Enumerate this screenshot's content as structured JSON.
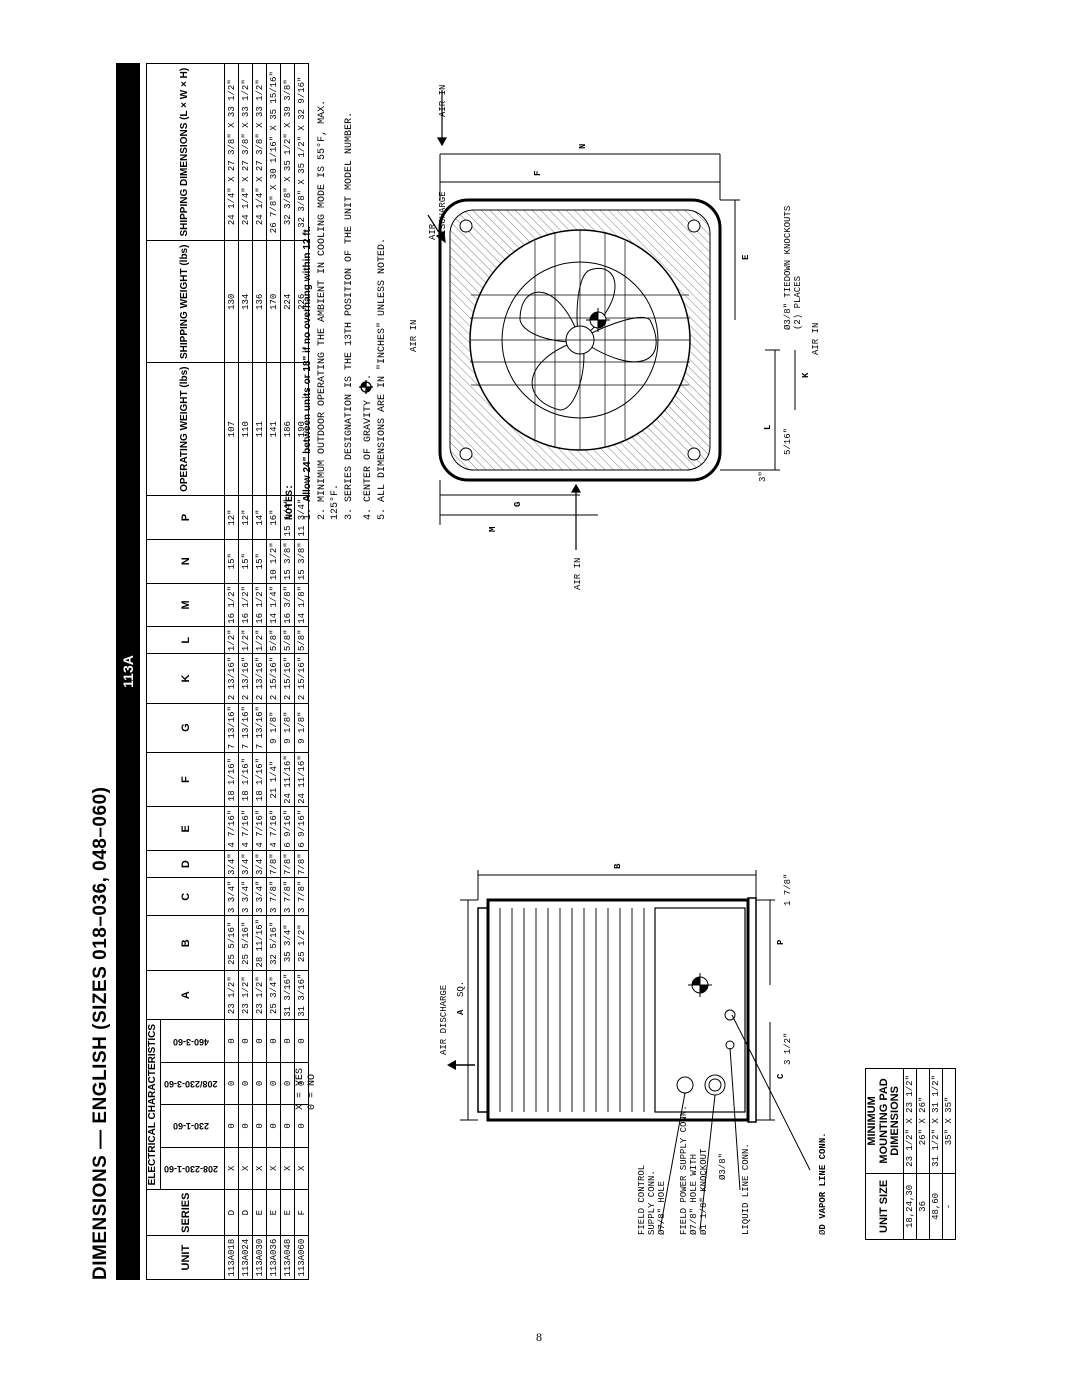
{
  "title": "DIMENSIONS — ENGLISH (SIZES 018–036, 048–060)",
  "bar_label": "113A",
  "page_number": "8",
  "legend": {
    "line1": "X = YES",
    "line2": "0 = NO"
  },
  "main_table": {
    "head_unit": "UNIT",
    "head_series": "SERIES",
    "head_elec": "ELECTRICAL CHARACTERISTICS",
    "head_A": "A",
    "head_B": "B",
    "head_C": "C",
    "head_D": "D",
    "head_E": "E",
    "head_F": "F",
    "head_G": "G",
    "head_K": "K",
    "head_L": "L",
    "head_M": "M",
    "head_N": "N",
    "head_P": "P",
    "head_operating": "OPERATING WEIGHT (lbs)",
    "head_shipweight": "SHIPPING WEIGHT (lbs)",
    "head_shipping": "SHIPPING DIMENSIONS (L × W × H)",
    "elec_cols": [
      "208-230-1-60",
      "230-1-60",
      "208/230-3-60",
      "460-3-60"
    ],
    "rows": [
      {
        "unit": "113A018",
        "series": "D",
        "elec": [
          "X",
          "0",
          "0",
          "0"
        ],
        "A": "23 1/2\"",
        "B": "25 5/16\"",
        "C": "3 3/4\"",
        "D": "3/4\"",
        "E": "4 7/16\"",
        "F": "18 1/16\"",
        "G": "7 13/16\"",
        "K": "2 13/16\"",
        "L": "1/2\"",
        "M": "16 1/2\"",
        "N": "15\"",
        "P": "12\"",
        "op": "107",
        "sw": "130",
        "sd": "24 1/4\" X 27 3/8\" X 33 1/2\""
      },
      {
        "unit": "113A024",
        "series": "D",
        "elec": [
          "X",
          "0",
          "0",
          "0"
        ],
        "A": "23 1/2\"",
        "B": "25 5/16\"",
        "C": "3 3/4\"",
        "D": "3/4\"",
        "E": "4 7/16\"",
        "F": "18 1/16\"",
        "G": "7 13/16\"",
        "K": "2 13/16\"",
        "L": "1/2\"",
        "M": "16 1/2\"",
        "N": "15\"",
        "P": "12\"",
        "op": "110",
        "sw": "134",
        "sd": "24 1/4\" X 27 3/8\" X 33 1/2\""
      },
      {
        "unit": "113A030",
        "series": "E",
        "elec": [
          "X",
          "0",
          "0",
          "0"
        ],
        "A": "23 1/2\"",
        "B": "28 11/16\"",
        "C": "3 3/4\"",
        "D": "3/4\"",
        "E": "4 7/16\"",
        "F": "18 1/16\"",
        "G": "7 13/16\"",
        "K": "2 13/16\"",
        "L": "1/2\"",
        "M": "16 1/2\"",
        "N": "15\"",
        "P": "14\"",
        "op": "111",
        "sw": "136",
        "sd": "24 1/4\" X 27 3/8\" X 33 1/2\""
      },
      {
        "unit": "113A036",
        "series": "E",
        "elec": [
          "X",
          "0",
          "0",
          "0"
        ],
        "A": "25 3/4\"",
        "B": "32 5/16\"",
        "C": "3 7/8\"",
        "D": "7/8\"",
        "E": "4 7/16\"",
        "F": "21 1/4\"",
        "G": "9 1/8\"",
        "K": "2 15/16\"",
        "L": "5/8\"",
        "M": "14 1/4\"",
        "N": "10 1/2\"",
        "P": "16\"",
        "op": "141",
        "sw": "170",
        "sd": "26 7/8\" X 30 1/16\" X 35 15/16\""
      },
      {
        "unit": "113A048",
        "series": "E",
        "elec": [
          "X",
          "0",
          "0",
          "0"
        ],
        "A": "31 3/16\"",
        "B": "35 3/4\"",
        "C": "3 7/8\"",
        "D": "7/8\"",
        "E": "6 9/16\"",
        "F": "24 11/16\"",
        "G": "9 1/8\"",
        "K": "2 15/16\"",
        "L": "5/8\"",
        "M": "16 3/8\"",
        "N": "15 3/8\"",
        "P": "15 1/4\"",
        "op": "186",
        "sw": "224",
        "sd": "32 3/8\" X 35 1/2\" X 39 3/8\""
      },
      {
        "unit": "113A060",
        "series": "F",
        "elec": [
          "X",
          "0",
          "0",
          "0"
        ],
        "A": "31 3/16\"",
        "B": "25 1/2\"",
        "C": "3 7/8\"",
        "D": "7/8\"",
        "E": "6 9/16\"",
        "F": "24 11/16\"",
        "G": "9 1/8\"",
        "K": "2 15/16\"",
        "L": "5/8\"",
        "M": "14 1/8\"",
        "N": "15 3/8\"",
        "P": "11 3/4\"",
        "op": "190",
        "sw": "226",
        "sd": "32 3/8\" X 35 1/2\" X 32 9/16\""
      }
    ]
  },
  "notes": {
    "title": "NOTES:",
    "n1_lead": "1.",
    "n1_bold": "Allow 24\" between units or 18\" if no overhang within 12 ft.",
    "n2": "2. MINIMUM OUTDOOR OPERATING THE AMBIENT IN COOLING MODE IS 55°F, MAX. 125°F.",
    "n3": "3. SERIES DESIGNATION IS THE 13TH POSITION OF THE UNIT MODEL NUMBER.",
    "n4_pre": "4. CENTER OF GRAVITY ",
    "n5": "5. ALL DIMENSIONS ARE IN \"INCHES\" UNLESS NOTED."
  },
  "diagram_top": {
    "air_in_top": "AIR IN",
    "air_in_left": "AIR IN",
    "air_in_right": "AIR IN",
    "air_in_bottom": "AIR IN",
    "air_discharge": "AIR\nDISCHARGE",
    "dim_M": "M",
    "dim_G": "G",
    "dim_F": "F",
    "dim_N": "N",
    "dim_L": "L",
    "dim_K": "K",
    "dim_E": "E",
    "tiny_3": "3\"",
    "tiny_516": "5/16\"",
    "knockouts": "Ø3/8\" TIEDOWN KNOCKOUTS\n(2) PLACES"
  },
  "diagram_side": {
    "air_discharge": "AIR DISCHARGE",
    "field_control": "FIELD CONTROL\nSUPPLY CONN.\nØ7/8\" HOLE",
    "field_power": "FIELD POWER SUPPLY CONN.\nØ7/8\" HOLE WITH\nØ1 1/8\" KNOCKOUT",
    "liquid_line": "LIQUID LINE CONN.",
    "vapor_line_pre": "Ø",
    "vapor_line": "D VAPOR LINE CONN.",
    "dim_A": "A",
    "dim_B": "B",
    "dim_C": "C",
    "dim_P": "P",
    "sq": "SQ.",
    "d38": "Ø3/8\"",
    "d312": "3 1/2\"",
    "d178": "1 7/8\""
  },
  "pad_table": {
    "head_size": "UNIT SIZE",
    "head_min": "MINIMUM\nMOUNTING PAD\nDIMENSIONS",
    "rows": [
      {
        "size": "18,24,30",
        "dim": "23 1/2\" X 23 1/2\""
      },
      {
        "size": "36",
        "dim": "26\" X 26\""
      },
      {
        "size": "48,60",
        "dim": "31 1/2\" X 31 1/2\""
      },
      {
        "size": "-",
        "dim": "35\" X 35\""
      }
    ]
  }
}
